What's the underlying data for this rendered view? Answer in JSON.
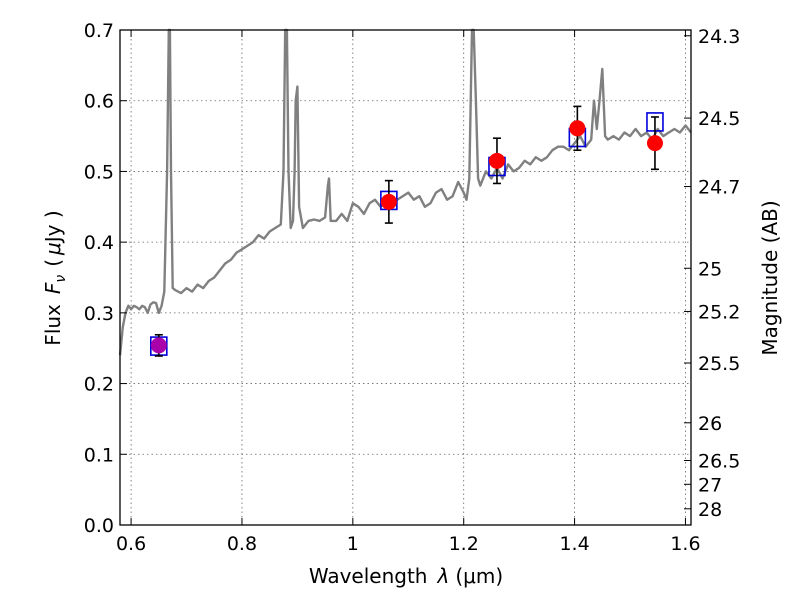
{
  "chart_data": {
    "type": "scatter",
    "xlabel": "Wavelength",
    "xlabel_symbol": "λ",
    "xlabel_unit": "(μm)",
    "ylabel": "Flux",
    "ylabel_symbol": "F",
    "ylabel_subscript": "ν",
    "ylabel_unit_open": "(",
    "ylabel_unit_mu": "μ",
    "ylabel_unit_rest": "Jy )",
    "y2label": "Magnitude (AB)",
    "xlim": [
      0.58,
      1.61
    ],
    "ylim": [
      0.0,
      0.7
    ],
    "x_ticks": [
      0.6,
      0.8,
      1.0,
      1.2,
      1.4,
      1.6
    ],
    "x_tick_labels": [
      "0.6",
      "0.8",
      "1",
      "1.2",
      "1.4",
      "1.6"
    ],
    "y_ticks": [
      0.0,
      0.1,
      0.2,
      0.3,
      0.4,
      0.5,
      0.6,
      0.7
    ],
    "y_tick_labels": [
      "0.0",
      "0.1",
      "0.2",
      "0.3",
      "0.4",
      "0.5",
      "0.6",
      "0.7"
    ],
    "mag_ticks": [
      24.3,
      24.5,
      24.7,
      25,
      25.2,
      25.5,
      26,
      26.5,
      27,
      28
    ],
    "mag_tick_labels": [
      "24.3",
      "24.5",
      "24.7",
      "25",
      "25.2",
      "25.5",
      "26",
      "26.5",
      "27",
      "28"
    ],
    "grid": true,
    "colors": {
      "model": "#808080",
      "observed": "#ff0000",
      "observed_first": "#aa00aa",
      "model_box": "#0000dd",
      "error_bar": "#000000"
    },
    "model_spectrum": {
      "x": [
        0.58,
        0.585,
        0.59,
        0.595,
        0.6,
        0.605,
        0.61,
        0.615,
        0.62,
        0.625,
        0.63,
        0.635,
        0.64,
        0.645,
        0.65,
        0.655,
        0.66,
        0.665,
        0.668,
        0.67,
        0.672,
        0.675,
        0.68,
        0.69,
        0.7,
        0.71,
        0.72,
        0.73,
        0.74,
        0.75,
        0.76,
        0.77,
        0.78,
        0.79,
        0.8,
        0.81,
        0.82,
        0.83,
        0.84,
        0.85,
        0.86,
        0.87,
        0.875,
        0.878,
        0.881,
        0.884,
        0.888,
        0.892,
        0.895,
        0.897,
        0.9,
        0.903,
        0.91,
        0.92,
        0.93,
        0.94,
        0.95,
        0.955,
        0.957,
        0.96,
        0.97,
        0.98,
        0.99,
        1.0,
        1.01,
        1.02,
        1.03,
        1.04,
        1.05,
        1.06,
        1.07,
        1.08,
        1.09,
        1.1,
        1.11,
        1.12,
        1.13,
        1.14,
        1.15,
        1.16,
        1.17,
        1.18,
        1.19,
        1.2,
        1.205,
        1.21,
        1.215,
        1.218,
        1.222,
        1.226,
        1.23,
        1.24,
        1.25,
        1.26,
        1.27,
        1.28,
        1.29,
        1.3,
        1.31,
        1.32,
        1.33,
        1.34,
        1.35,
        1.36,
        1.37,
        1.38,
        1.39,
        1.4,
        1.41,
        1.42,
        1.43,
        1.435,
        1.44,
        1.445,
        1.45,
        1.455,
        1.46,
        1.47,
        1.48,
        1.49,
        1.5,
        1.51,
        1.52,
        1.53,
        1.54,
        1.55,
        1.56,
        1.57,
        1.58,
        1.59,
        1.6,
        1.61
      ],
      "y": [
        0.24,
        0.28,
        0.3,
        0.31,
        0.305,
        0.31,
        0.308,
        0.305,
        0.31,
        0.308,
        0.3,
        0.312,
        0.315,
        0.314,
        0.3,
        0.31,
        0.33,
        0.5,
        0.7,
        0.7,
        0.5,
        0.335,
        0.332,
        0.328,
        0.335,
        0.33,
        0.34,
        0.335,
        0.345,
        0.35,
        0.36,
        0.37,
        0.375,
        0.385,
        0.39,
        0.395,
        0.4,
        0.41,
        0.405,
        0.415,
        0.42,
        0.425,
        0.5,
        0.7,
        0.7,
        0.5,
        0.42,
        0.43,
        0.5,
        0.6,
        0.62,
        0.45,
        0.42,
        0.43,
        0.432,
        0.43,
        0.435,
        0.48,
        0.49,
        0.43,
        0.43,
        0.44,
        0.43,
        0.455,
        0.45,
        0.44,
        0.455,
        0.46,
        0.45,
        0.455,
        0.46,
        0.46,
        0.465,
        0.47,
        0.46,
        0.465,
        0.45,
        0.455,
        0.47,
        0.475,
        0.46,
        0.465,
        0.485,
        0.47,
        0.46,
        0.49,
        0.7,
        0.7,
        0.6,
        0.49,
        0.48,
        0.5,
        0.49,
        0.505,
        0.49,
        0.51,
        0.5,
        0.505,
        0.515,
        0.51,
        0.52,
        0.515,
        0.52,
        0.53,
        0.535,
        0.535,
        0.53,
        0.54,
        0.55,
        0.535,
        0.545,
        0.6,
        0.56,
        0.6,
        0.645,
        0.55,
        0.545,
        0.55,
        0.545,
        0.555,
        0.55,
        0.56,
        0.55,
        0.555,
        0.545,
        0.56,
        0.55,
        0.555,
        0.56,
        0.555,
        0.565,
        0.555
      ]
    },
    "observed": [
      {
        "x": 0.65,
        "y": 0.254,
        "yerr": 0.015
      },
      {
        "x": 1.065,
        "y": 0.457,
        "yerr": 0.03
      },
      {
        "x": 1.26,
        "y": 0.515,
        "yerr": 0.032
      },
      {
        "x": 1.405,
        "y": 0.561,
        "yerr": 0.031
      },
      {
        "x": 1.545,
        "y": 0.54,
        "yerr": 0.037
      }
    ],
    "model_photometry": [
      {
        "x": 0.65,
        "y": 0.253
      },
      {
        "x": 1.065,
        "y": 0.459
      },
      {
        "x": 1.26,
        "y": 0.507
      },
      {
        "x": 1.405,
        "y": 0.548
      },
      {
        "x": 1.545,
        "y": 0.57
      }
    ]
  }
}
